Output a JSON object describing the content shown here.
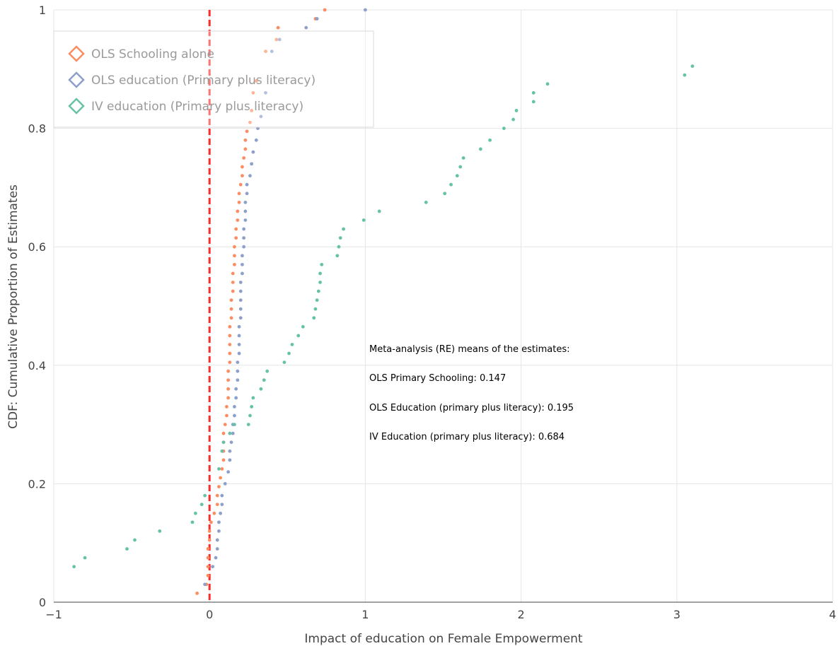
{
  "chart_data": {
    "type": "scatter",
    "title": "",
    "xlabel": "Impact of education on Female Empowerment",
    "ylabel": "CDF: Cumulative Proportion of Estimates",
    "xlim": [
      -1,
      4
    ],
    "ylim": [
      0,
      1
    ],
    "x_ticks": [
      "−1",
      "0",
      "1",
      "2",
      "3",
      "4"
    ],
    "y_ticks": [
      "0",
      "0.2",
      "0.4",
      "0.6",
      "0.8",
      "1"
    ],
    "grid": true,
    "legend_position": "top-left",
    "reference_line": {
      "x": 0,
      "color": "#ff2a2a",
      "style": "dashed"
    },
    "series": [
      {
        "name": "OLS Schooling alone",
        "color": "#fc8d62",
        "points": [
          [
            -0.08,
            0.015
          ],
          [
            -0.02,
            0.03
          ],
          [
            -0.01,
            0.045
          ],
          [
            -0.01,
            0.06
          ],
          [
            -0.01,
            0.075
          ],
          [
            -0.01,
            0.09
          ],
          [
            0.0,
            0.105
          ],
          [
            0.0,
            0.12
          ],
          [
            0.01,
            0.135
          ],
          [
            0.03,
            0.15
          ],
          [
            0.05,
            0.165
          ],
          [
            0.05,
            0.18
          ],
          [
            0.06,
            0.195
          ],
          [
            0.07,
            0.21
          ],
          [
            0.08,
            0.225
          ],
          [
            0.09,
            0.24
          ],
          [
            0.09,
            0.255
          ],
          [
            0.09,
            0.27
          ],
          [
            0.09,
            0.285
          ],
          [
            0.1,
            0.3
          ],
          [
            0.11,
            0.315
          ],
          [
            0.11,
            0.33
          ],
          [
            0.12,
            0.345
          ],
          [
            0.12,
            0.36
          ],
          [
            0.12,
            0.375
          ],
          [
            0.12,
            0.39
          ],
          [
            0.13,
            0.405
          ],
          [
            0.13,
            0.42
          ],
          [
            0.13,
            0.435
          ],
          [
            0.13,
            0.45
          ],
          [
            0.13,
            0.465
          ],
          [
            0.14,
            0.48
          ],
          [
            0.14,
            0.495
          ],
          [
            0.14,
            0.51
          ],
          [
            0.15,
            0.525
          ],
          [
            0.15,
            0.54
          ],
          [
            0.15,
            0.555
          ],
          [
            0.16,
            0.57
          ],
          [
            0.16,
            0.585
          ],
          [
            0.16,
            0.6
          ],
          [
            0.17,
            0.615
          ],
          [
            0.17,
            0.63
          ],
          [
            0.18,
            0.645
          ],
          [
            0.18,
            0.66
          ],
          [
            0.19,
            0.675
          ],
          [
            0.19,
            0.69
          ],
          [
            0.2,
            0.705
          ],
          [
            0.21,
            0.72
          ],
          [
            0.21,
            0.735
          ],
          [
            0.22,
            0.75
          ],
          [
            0.23,
            0.765
          ],
          [
            0.23,
            0.78
          ],
          [
            0.24,
            0.795
          ],
          [
            0.26,
            0.81
          ],
          [
            0.27,
            0.83
          ],
          [
            0.28,
            0.86
          ],
          [
            0.3,
            0.88
          ],
          [
            0.36,
            0.93
          ],
          [
            0.43,
            0.95
          ],
          [
            0.44,
            0.97
          ],
          [
            0.68,
            0.985
          ],
          [
            0.74,
            1.0
          ]
        ]
      },
      {
        "name": "OLS education (Primary plus literacy)",
        "color": "#8da0cb",
        "points": [
          [
            -0.03,
            0.03
          ],
          [
            0.02,
            0.06
          ],
          [
            0.04,
            0.075
          ],
          [
            0.05,
            0.09
          ],
          [
            0.05,
            0.105
          ],
          [
            0.06,
            0.12
          ],
          [
            0.06,
            0.135
          ],
          [
            0.07,
            0.15
          ],
          [
            0.08,
            0.165
          ],
          [
            0.08,
            0.18
          ],
          [
            0.1,
            0.2
          ],
          [
            0.12,
            0.22
          ],
          [
            0.13,
            0.24
          ],
          [
            0.13,
            0.255
          ],
          [
            0.14,
            0.27
          ],
          [
            0.15,
            0.285
          ],
          [
            0.15,
            0.3
          ],
          [
            0.16,
            0.315
          ],
          [
            0.16,
            0.33
          ],
          [
            0.17,
            0.345
          ],
          [
            0.17,
            0.36
          ],
          [
            0.18,
            0.375
          ],
          [
            0.18,
            0.39
          ],
          [
            0.18,
            0.405
          ],
          [
            0.19,
            0.42
          ],
          [
            0.19,
            0.435
          ],
          [
            0.19,
            0.45
          ],
          [
            0.19,
            0.465
          ],
          [
            0.2,
            0.48
          ],
          [
            0.2,
            0.495
          ],
          [
            0.2,
            0.51
          ],
          [
            0.2,
            0.525
          ],
          [
            0.2,
            0.54
          ],
          [
            0.21,
            0.555
          ],
          [
            0.21,
            0.57
          ],
          [
            0.21,
            0.585
          ],
          [
            0.22,
            0.6
          ],
          [
            0.22,
            0.615
          ],
          [
            0.22,
            0.63
          ],
          [
            0.23,
            0.645
          ],
          [
            0.23,
            0.66
          ],
          [
            0.23,
            0.675
          ],
          [
            0.24,
            0.69
          ],
          [
            0.24,
            0.705
          ],
          [
            0.26,
            0.72
          ],
          [
            0.27,
            0.74
          ],
          [
            0.28,
            0.76
          ],
          [
            0.3,
            0.78
          ],
          [
            0.31,
            0.8
          ],
          [
            0.33,
            0.82
          ],
          [
            0.36,
            0.86
          ],
          [
            0.4,
            0.93
          ],
          [
            0.45,
            0.95
          ],
          [
            0.62,
            0.97
          ],
          [
            0.69,
            0.985
          ],
          [
            1.0,
            1.0
          ]
        ]
      },
      {
        "name": "IV education (Primary plus literacy)",
        "color": "#66c2a5",
        "points": [
          [
            -0.87,
            0.06
          ],
          [
            -0.8,
            0.075
          ],
          [
            -0.53,
            0.09
          ],
          [
            -0.48,
            0.105
          ],
          [
            -0.32,
            0.12
          ],
          [
            -0.11,
            0.135
          ],
          [
            -0.09,
            0.15
          ],
          [
            -0.05,
            0.165
          ],
          [
            -0.03,
            0.18
          ],
          [
            0.06,
            0.225
          ],
          [
            0.08,
            0.255
          ],
          [
            0.09,
            0.27
          ],
          [
            0.13,
            0.285
          ],
          [
            0.16,
            0.3
          ],
          [
            0.25,
            0.3
          ],
          [
            0.26,
            0.315
          ],
          [
            0.27,
            0.33
          ],
          [
            0.28,
            0.345
          ],
          [
            0.33,
            0.36
          ],
          [
            0.35,
            0.375
          ],
          [
            0.37,
            0.39
          ],
          [
            0.48,
            0.405
          ],
          [
            0.51,
            0.42
          ],
          [
            0.53,
            0.435
          ],
          [
            0.57,
            0.45
          ],
          [
            0.6,
            0.465
          ],
          [
            0.67,
            0.48
          ],
          [
            0.68,
            0.495
          ],
          [
            0.69,
            0.51
          ],
          [
            0.7,
            0.525
          ],
          [
            0.71,
            0.54
          ],
          [
            0.71,
            0.555
          ],
          [
            0.72,
            0.57
          ],
          [
            0.82,
            0.585
          ],
          [
            0.83,
            0.6
          ],
          [
            0.84,
            0.615
          ],
          [
            0.86,
            0.63
          ],
          [
            0.99,
            0.645
          ],
          [
            1.09,
            0.66
          ],
          [
            1.39,
            0.675
          ],
          [
            1.51,
            0.69
          ],
          [
            1.55,
            0.705
          ],
          [
            1.59,
            0.72
          ],
          [
            1.61,
            0.735
          ],
          [
            1.63,
            0.75
          ],
          [
            1.74,
            0.765
          ],
          [
            1.8,
            0.78
          ],
          [
            1.89,
            0.8
          ],
          [
            1.95,
            0.815
          ],
          [
            1.97,
            0.83
          ],
          [
            2.08,
            0.845
          ],
          [
            2.08,
            0.86
          ],
          [
            2.17,
            0.875
          ],
          [
            3.05,
            0.89
          ],
          [
            3.1,
            0.905
          ]
        ]
      }
    ],
    "annotations": [
      "Meta-analysis (RE) means of the estimates:",
      "OLS Primary Schooling: 0.147",
      "OLS Education (primary plus literacy): 0.195",
      "IV Education (primary plus literacy): 0.684"
    ]
  }
}
